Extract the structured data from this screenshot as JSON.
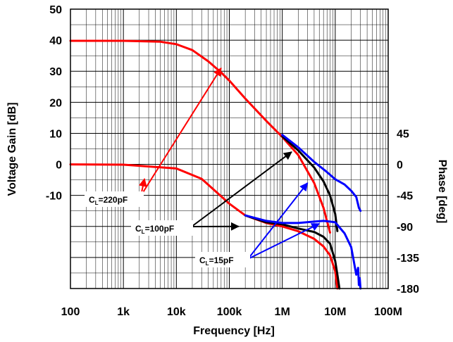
{
  "chart_data": {
    "type": "line",
    "xlabel": "Frequency [Hz]",
    "ylabel_left": "Voltage Gain [dB]",
    "ylabel_right": "Phase [deg]",
    "x_scale": "log",
    "xlim": [
      100,
      100000000
    ],
    "ylim_left": [
      -40,
      50
    ],
    "ylim_right": [
      -180,
      45
    ],
    "grid": true,
    "x_ticks": [
      {
        "value": 100,
        "label": "100"
      },
      {
        "value": 1000,
        "label": "1k"
      },
      {
        "value": 10000,
        "label": "10k"
      },
      {
        "value": 100000,
        "label": "100k"
      },
      {
        "value": 1000000,
        "label": "1M"
      },
      {
        "value": 10000000,
        "label": "10M"
      },
      {
        "value": 100000000,
        "label": "100M"
      }
    ],
    "y_left_ticks": [
      {
        "value": 50,
        "label": "50"
      },
      {
        "value": 40,
        "label": "40"
      },
      {
        "value": 30,
        "label": "30"
      },
      {
        "value": 20,
        "label": "20"
      },
      {
        "value": 10,
        "label": "10"
      },
      {
        "value": 0,
        "label": "0"
      },
      {
        "value": -10,
        "label": "-10"
      }
    ],
    "y_right_ticks": [
      {
        "value": 45,
        "label": "45"
      },
      {
        "value": 0,
        "label": "0"
      },
      {
        "value": -45,
        "label": "-45"
      },
      {
        "value": -90,
        "label": "-90"
      },
      {
        "value": -135,
        "label": "-135"
      },
      {
        "value": -180,
        "label": "-180"
      }
    ],
    "annotations": [
      {
        "text": "C",
        "sub": "L",
        "rest": "=220pF",
        "color": "#ff0000"
      },
      {
        "text": "C",
        "sub": "L",
        "rest": "=100pF",
        "color": "#000000"
      },
      {
        "text": "C",
        "sub": "L",
        "rest": "=15pF",
        "color": "#0000ff"
      }
    ],
    "series": [
      {
        "axis": "left",
        "color": "#ff0000",
        "x": [
          100,
          1000,
          5000,
          10000,
          20000,
          40000,
          70000,
          100000,
          200000,
          500000,
          1000000,
          2000000,
          4000000,
          6000000,
          8000000
        ],
        "y": [
          39.8,
          39.8,
          39.5,
          38.7,
          36.8,
          33.2,
          29.6,
          27.0,
          21.2,
          14.0,
          8.8,
          3.0,
          -6.0,
          -14.0,
          -22.0
        ]
      },
      {
        "axis": "left",
        "color": "#000000",
        "x": [
          1000000,
          2000000,
          4000000,
          6000000,
          8000000,
          10000000,
          11000000
        ],
        "y": [
          9.0,
          4.5,
          -1.0,
          -5.5,
          -10.0,
          -16.0,
          -21.5
        ]
      },
      {
        "axis": "left",
        "color": "#0000ff",
        "x": [
          1000000,
          2000000,
          4000000,
          7000000,
          10000000,
          15000000,
          20000000,
          25000000,
          28000000,
          30000000
        ],
        "y": [
          9.5,
          5.5,
          0.8,
          -2.5,
          -4.8,
          -6.5,
          -8.5,
          -10.5,
          -14.0,
          -15.0
        ]
      },
      {
        "axis": "right",
        "color": "#ff0000",
        "x": [
          100,
          1000,
          10000,
          30000,
          100000,
          200000,
          500000,
          1000000,
          2000000,
          4000000,
          6000000,
          8000000,
          10000000,
          11000000
        ],
        "y": [
          0,
          -0.5,
          -6,
          -21,
          -57,
          -74,
          -85,
          -90,
          -97,
          -108,
          -119,
          -132,
          -155,
          -180
        ]
      },
      {
        "axis": "right",
        "color": "#000000",
        "x": [
          200000,
          500000,
          1000000,
          2000000,
          4000000,
          6000000,
          8000000,
          10000000,
          11000000,
          12000000
        ],
        "y": [
          -74,
          -84,
          -87,
          -93,
          -98,
          -105,
          -115,
          -140,
          -160,
          -180
        ]
      },
      {
        "axis": "right",
        "color": "#0000ff",
        "x": [
          200000,
          500000,
          1000000,
          2000000,
          4000000,
          6000000,
          8000000,
          10000000,
          15000000,
          20000000,
          23000000,
          25000000,
          27000000,
          28000000,
          29000000,
          30000000
        ],
        "y": [
          -74,
          -82,
          -85,
          -85,
          -83,
          -82,
          -83,
          -84,
          -100,
          -120,
          -145,
          -160,
          -150,
          -175,
          -165,
          -180
        ]
      }
    ]
  }
}
